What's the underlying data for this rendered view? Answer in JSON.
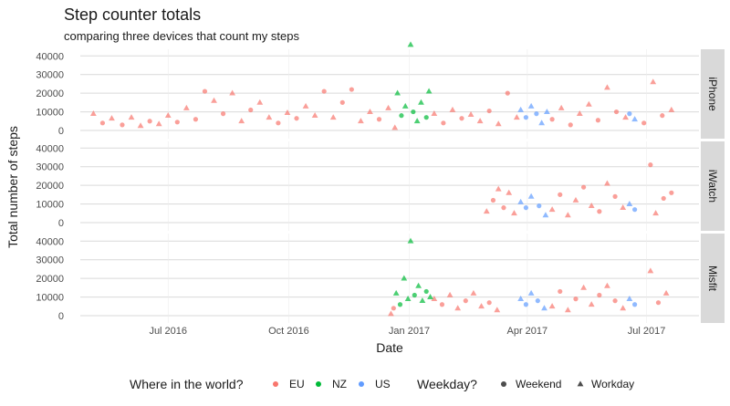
{
  "chart_data": {
    "type": "scatter",
    "title": "Step counter totals",
    "subtitle": "comparing three devices that count my steps",
    "xlabel": "Date",
    "ylabel": "Total number of steps",
    "x_ticks": [
      "Jul 2016",
      "Oct 2016",
      "Jan 2017",
      "Apr 2017",
      "Jul 2017"
    ],
    "x_tick_dates": [
      "2016-07-01",
      "2016-10-01",
      "2017-01-01",
      "2017-04-01",
      "2017-07-01"
    ],
    "xlim": [
      "2016-04-25",
      "2017-08-10"
    ],
    "y_ticks": [
      0,
      10000,
      20000,
      30000,
      40000
    ],
    "ylim": [
      0,
      46000
    ],
    "grid": true,
    "legend": {
      "placement": "bottom",
      "color_title": "Where in the world?",
      "color_entries": [
        {
          "label": "EU",
          "color": "#F8766D"
        },
        {
          "label": "NZ",
          "color": "#00BA38"
        },
        {
          "label": "US",
          "color": "#619CFF"
        }
      ],
      "shape_title": "Weekday?",
      "shape_entries": [
        {
          "label": "Weekend",
          "shape": "circle"
        },
        {
          "label": "Workday",
          "shape": "triangle"
        }
      ]
    },
    "facets": [
      {
        "device": "iPhone",
        "series": [
          {
            "name": "EU",
            "points": [
              [
                "2016-05-05",
                9000,
                "Workday"
              ],
              [
                "2016-05-12",
                4000,
                "Weekend"
              ],
              [
                "2016-05-19",
                6500,
                "Workday"
              ],
              [
                "2016-05-27",
                3000,
                "Weekend"
              ],
              [
                "2016-06-03",
                7000,
                "Workday"
              ],
              [
                "2016-06-10",
                2500,
                "Workday"
              ],
              [
                "2016-06-17",
                5000,
                "Weekend"
              ],
              [
                "2016-06-24",
                3500,
                "Workday"
              ],
              [
                "2016-07-01",
                8000,
                "Workday"
              ],
              [
                "2016-07-08",
                4500,
                "Weekend"
              ],
              [
                "2016-07-15",
                12000,
                "Workday"
              ],
              [
                "2016-07-22",
                6000,
                "Weekend"
              ],
              [
                "2016-07-29",
                21000,
                "Weekend"
              ],
              [
                "2016-08-05",
                16000,
                "Workday"
              ],
              [
                "2016-08-12",
                9000,
                "Weekend"
              ],
              [
                "2016-08-19",
                20000,
                "Workday"
              ],
              [
                "2016-08-26",
                5000,
                "Workday"
              ],
              [
                "2016-09-02",
                11000,
                "Weekend"
              ],
              [
                "2016-09-09",
                15000,
                "Workday"
              ],
              [
                "2016-09-16",
                7000,
                "Workday"
              ],
              [
                "2016-09-23",
                4000,
                "Weekend"
              ],
              [
                "2016-09-30",
                9500,
                "Workday"
              ],
              [
                "2016-10-07",
                6500,
                "Weekend"
              ],
              [
                "2016-10-14",
                13000,
                "Workday"
              ],
              [
                "2016-10-21",
                8000,
                "Workday"
              ],
              [
                "2016-10-28",
                21000,
                "Weekend"
              ],
              [
                "2016-11-04",
                7000,
                "Workday"
              ],
              [
                "2016-11-11",
                15000,
                "Weekend"
              ],
              [
                "2016-11-18",
                22000,
                "Weekend"
              ],
              [
                "2016-11-25",
                5000,
                "Workday"
              ],
              [
                "2016-12-02",
                10000,
                "Workday"
              ],
              [
                "2016-12-09",
                6000,
                "Weekend"
              ],
              [
                "2016-12-16",
                12000,
                "Workday"
              ],
              [
                "2016-12-21",
                1500,
                "Workday"
              ],
              [
                "2017-01-20",
                9000,
                "Workday"
              ],
              [
                "2017-01-27",
                4000,
                "Weekend"
              ],
              [
                "2017-02-03",
                11000,
                "Workday"
              ],
              [
                "2017-02-10",
                6500,
                "Weekend"
              ],
              [
                "2017-02-17",
                8500,
                "Workday"
              ],
              [
                "2017-02-24",
                5000,
                "Workday"
              ],
              [
                "2017-03-03",
                10500,
                "Weekend"
              ],
              [
                "2017-03-10",
                3500,
                "Workday"
              ],
              [
                "2017-03-17",
                20000,
                "Weekend"
              ],
              [
                "2017-03-24",
                7000,
                "Workday"
              ],
              [
                "2017-04-20",
                6000,
                "Weekend"
              ],
              [
                "2017-04-27",
                12000,
                "Workday"
              ],
              [
                "2017-05-04",
                3000,
                "Weekend"
              ],
              [
                "2017-05-11",
                9000,
                "Workday"
              ],
              [
                "2017-05-18",
                14000,
                "Workday"
              ],
              [
                "2017-05-25",
                5500,
                "Weekend"
              ],
              [
                "2017-06-01",
                23000,
                "Workday"
              ],
              [
                "2017-06-08",
                10000,
                "Weekend"
              ],
              [
                "2017-06-15",
                7000,
                "Workday"
              ],
              [
                "2017-06-29",
                4000,
                "Weekend"
              ],
              [
                "2017-07-06",
                26000,
                "Workday"
              ],
              [
                "2017-07-13",
                8000,
                "Weekend"
              ],
              [
                "2017-07-20",
                11000,
                "Workday"
              ]
            ]
          },
          {
            "name": "NZ",
            "points": [
              [
                "2016-12-23",
                20000,
                "Workday"
              ],
              [
                "2016-12-26",
                8000,
                "Weekend"
              ],
              [
                "2016-12-29",
                13000,
                "Workday"
              ],
              [
                "2017-01-02",
                46000,
                "Workday"
              ],
              [
                "2017-01-04",
                10000,
                "Weekend"
              ],
              [
                "2017-01-07",
                5000,
                "Workday"
              ],
              [
                "2017-01-10",
                15000,
                "Workday"
              ],
              [
                "2017-01-14",
                7000,
                "Weekend"
              ],
              [
                "2017-01-16",
                21000,
                "Workday"
              ]
            ]
          },
          {
            "name": "US",
            "points": [
              [
                "2017-03-27",
                11000,
                "Workday"
              ],
              [
                "2017-03-31",
                7000,
                "Weekend"
              ],
              [
                "2017-04-04",
                13000,
                "Workday"
              ],
              [
                "2017-04-08",
                9000,
                "Weekend"
              ],
              [
                "2017-04-12",
                4000,
                "Workday"
              ],
              [
                "2017-04-16",
                10000,
                "Workday"
              ],
              [
                "2017-06-18",
                9000,
                "Weekend"
              ],
              [
                "2017-06-22",
                6000,
                "Workday"
              ]
            ]
          }
        ]
      },
      {
        "device": "iWatch",
        "series": [
          {
            "name": "EU",
            "points": [
              [
                "2017-03-01",
                6000,
                "Workday"
              ],
              [
                "2017-03-06",
                12000,
                "Weekend"
              ],
              [
                "2017-03-10",
                18000,
                "Workday"
              ],
              [
                "2017-03-14",
                8000,
                "Weekend"
              ],
              [
                "2017-03-18",
                16000,
                "Workday"
              ],
              [
                "2017-03-22",
                5000,
                "Workday"
              ],
              [
                "2017-04-20",
                7000,
                "Workday"
              ],
              [
                "2017-04-26",
                15000,
                "Weekend"
              ],
              [
                "2017-05-02",
                4000,
                "Workday"
              ],
              [
                "2017-05-08",
                12000,
                "Workday"
              ],
              [
                "2017-05-14",
                19000,
                "Weekend"
              ],
              [
                "2017-05-20",
                9000,
                "Workday"
              ],
              [
                "2017-05-26",
                6000,
                "Weekend"
              ],
              [
                "2017-06-01",
                21000,
                "Workday"
              ],
              [
                "2017-06-07",
                14000,
                "Weekend"
              ],
              [
                "2017-06-13",
                8000,
                "Workday"
              ],
              [
                "2017-07-04",
                31000,
                "Weekend"
              ],
              [
                "2017-07-08",
                5000,
                "Workday"
              ],
              [
                "2017-07-14",
                13000,
                "Weekend"
              ],
              [
                "2017-07-20",
                16000,
                "Weekend"
              ]
            ]
          },
          {
            "name": "US",
            "points": [
              [
                "2017-03-27",
                11000,
                "Workday"
              ],
              [
                "2017-03-31",
                8000,
                "Weekend"
              ],
              [
                "2017-04-04",
                14000,
                "Workday"
              ],
              [
                "2017-04-10",
                9000,
                "Weekend"
              ],
              [
                "2017-04-15",
                4000,
                "Workday"
              ],
              [
                "2017-06-18",
                10000,
                "Workday"
              ],
              [
                "2017-06-22",
                7000,
                "Weekend"
              ]
            ]
          }
        ]
      },
      {
        "device": "Misfit",
        "series": [
          {
            "name": "EU",
            "points": [
              [
                "2016-12-18",
                1000,
                "Workday"
              ],
              [
                "2016-12-20",
                4000,
                "Weekend"
              ],
              [
                "2017-01-20",
                9000,
                "Workday"
              ],
              [
                "2017-01-26",
                6000,
                "Weekend"
              ],
              [
                "2017-02-01",
                11000,
                "Workday"
              ],
              [
                "2017-02-07",
                4000,
                "Workday"
              ],
              [
                "2017-02-13",
                8000,
                "Weekend"
              ],
              [
                "2017-02-19",
                12000,
                "Workday"
              ],
              [
                "2017-02-25",
                5000,
                "Workday"
              ],
              [
                "2017-03-03",
                7000,
                "Weekend"
              ],
              [
                "2017-03-09",
                3000,
                "Workday"
              ],
              [
                "2017-04-20",
                5000,
                "Workday"
              ],
              [
                "2017-04-26",
                13000,
                "Weekend"
              ],
              [
                "2017-05-02",
                3000,
                "Workday"
              ],
              [
                "2017-05-08",
                9000,
                "Weekend"
              ],
              [
                "2017-05-14",
                15000,
                "Workday"
              ],
              [
                "2017-05-20",
                6000,
                "Workday"
              ],
              [
                "2017-05-26",
                11000,
                "Weekend"
              ],
              [
                "2017-06-01",
                16000,
                "Workday"
              ],
              [
                "2017-06-07",
                8000,
                "Weekend"
              ],
              [
                "2017-06-13",
                4000,
                "Workday"
              ],
              [
                "2017-07-04",
                24000,
                "Workday"
              ],
              [
                "2017-07-10",
                7000,
                "Weekend"
              ],
              [
                "2017-07-16",
                12000,
                "Workday"
              ]
            ]
          },
          {
            "name": "NZ",
            "points": [
              [
                "2016-12-22",
                12000,
                "Workday"
              ],
              [
                "2016-12-25",
                6000,
                "Weekend"
              ],
              [
                "2016-12-28",
                20000,
                "Workday"
              ],
              [
                "2016-12-31",
                9000,
                "Workday"
              ],
              [
                "2017-01-02",
                40000,
                "Workday"
              ],
              [
                "2017-01-05",
                11000,
                "Weekend"
              ],
              [
                "2017-01-08",
                16000,
                "Workday"
              ],
              [
                "2017-01-11",
                8000,
                "Workday"
              ],
              [
                "2017-01-14",
                13000,
                "Weekend"
              ],
              [
                "2017-01-17",
                10000,
                "Workday"
              ]
            ]
          },
          {
            "name": "US",
            "points": [
              [
                "2017-03-27",
                9000,
                "Workday"
              ],
              [
                "2017-03-31",
                6000,
                "Weekend"
              ],
              [
                "2017-04-04",
                12000,
                "Workday"
              ],
              [
                "2017-04-09",
                8000,
                "Weekend"
              ],
              [
                "2017-04-14",
                4000,
                "Workday"
              ],
              [
                "2017-06-18",
                9000,
                "Workday"
              ],
              [
                "2017-06-22",
                6000,
                "Weekend"
              ]
            ]
          }
        ]
      }
    ]
  }
}
